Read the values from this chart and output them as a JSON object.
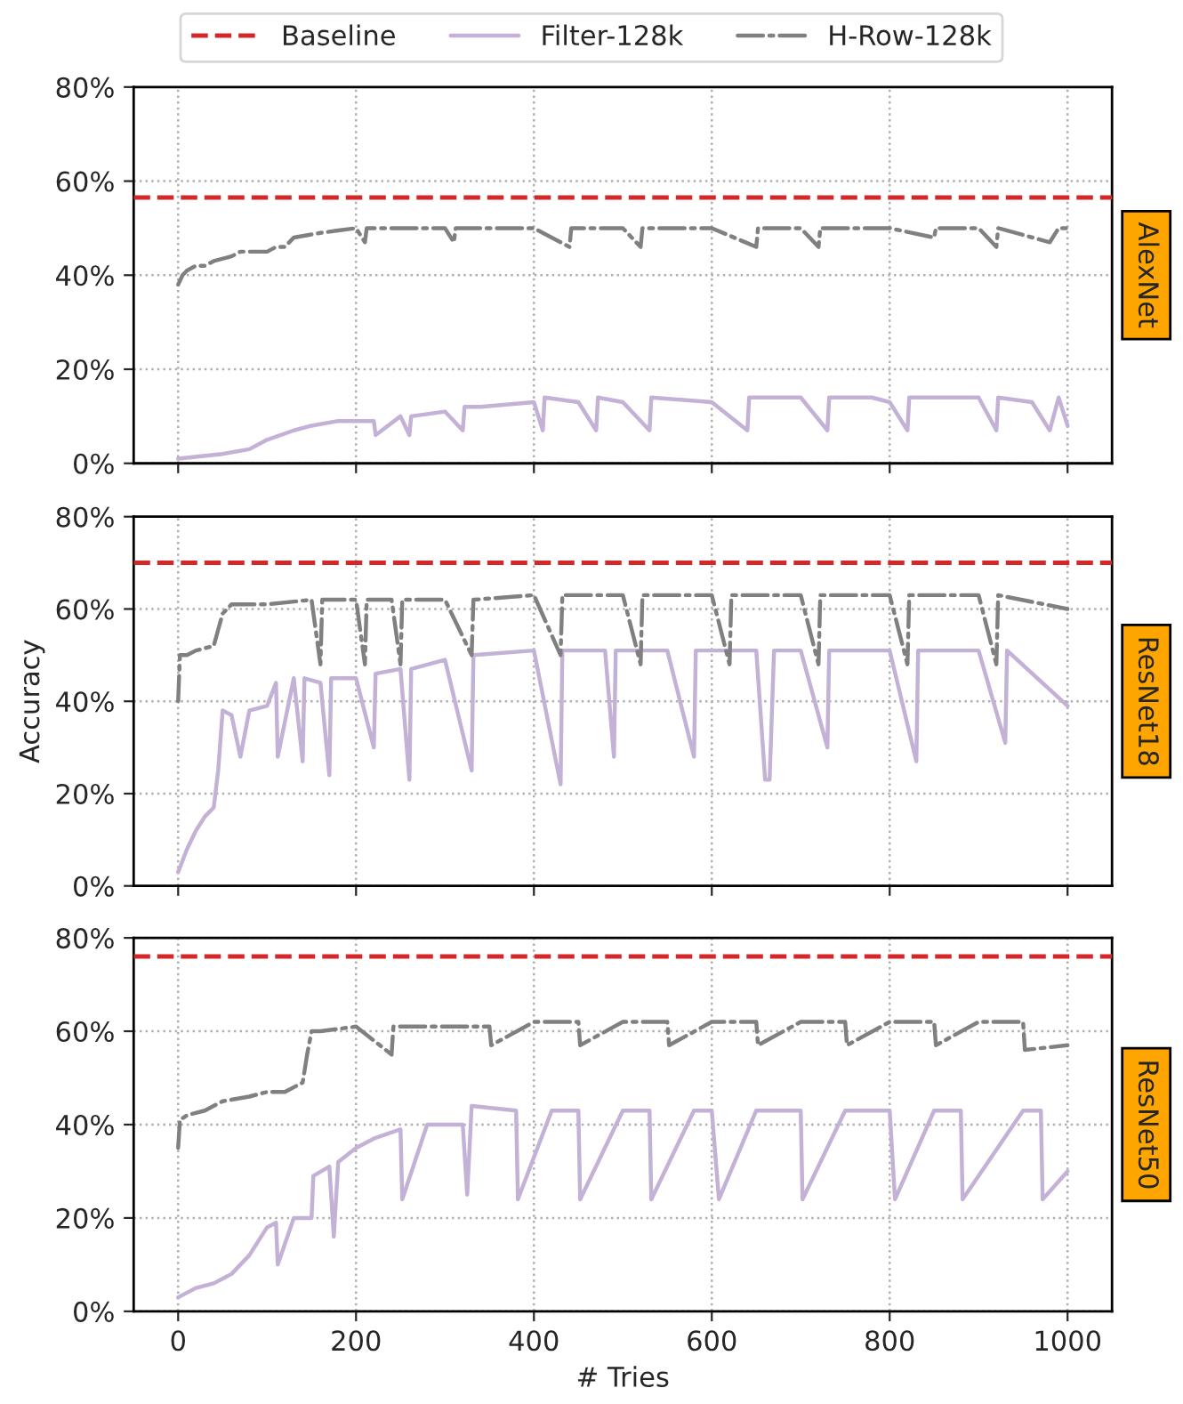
{
  "chart_data": [
    {
      "type": "line",
      "legend": "top",
      "grid": true,
      "tick_labels": "y",
      "annotations": [
        "AlexNet"
      ],
      "xlim": [
        -50,
        1050
      ],
      "xticks": [
        0,
        200,
        400,
        600,
        800,
        1000
      ],
      "ylim": [
        0,
        80
      ],
      "yticks": [
        {
          "value": 0,
          "label": "0%"
        },
        {
          "value": 20,
          "label": "20%"
        },
        {
          "value": 40,
          "label": "40%"
        },
        {
          "value": 60,
          "label": "60%"
        },
        {
          "value": 80,
          "label": "80%"
        }
      ],
      "ref_lines": [
        {
          "axis": "y",
          "value": 56.5,
          "label": "Baseline",
          "color": "#d62728",
          "line_style": "dashed"
        }
      ],
      "series": [
        {
          "name": "Filter-128k",
          "color": "#c3b1d6",
          "line_style": "solid",
          "x": [
            0,
            50,
            80,
            100,
            130,
            150,
            180,
            200,
            220,
            222,
            250,
            260,
            262,
            300,
            320,
            322,
            340,
            400,
            410,
            412,
            450,
            470,
            472,
            500,
            530,
            532,
            600,
            640,
            642,
            700,
            730,
            732,
            780,
            800,
            820,
            822,
            870,
            900,
            920,
            922,
            960,
            980,
            990,
            1000
          ],
          "values": [
            1,
            2,
            3,
            5,
            7,
            8,
            9,
            9,
            9,
            6,
            10,
            6,
            10,
            11,
            7,
            12,
            12,
            13,
            7,
            14,
            13,
            7,
            14,
            13,
            7,
            14,
            13,
            7,
            14,
            14,
            7,
            14,
            14,
            13,
            7,
            14,
            14,
            14,
            7,
            14,
            13,
            7,
            14,
            8
          ]
        },
        {
          "name": "H-Row-128k",
          "color": "#808080",
          "line_style": "dashed",
          "x": [
            0,
            5,
            10,
            20,
            30,
            40,
            60,
            70,
            100,
            110,
            120,
            130,
            160,
            180,
            200,
            210,
            212,
            230,
            300,
            310,
            312,
            400,
            440,
            442,
            500,
            520,
            522,
            600,
            650,
            652,
            700,
            720,
            722,
            800,
            850,
            852,
            900,
            920,
            922,
            980,
            990,
            1000
          ],
          "values": [
            38,
            40,
            41,
            42,
            42,
            43,
            44,
            45,
            45,
            46,
            46,
            48,
            49,
            49.5,
            50,
            47,
            50,
            50,
            50,
            47,
            50,
            50,
            46,
            50,
            50,
            46,
            50,
            50,
            46,
            50,
            50,
            46,
            50,
            50,
            48,
            50,
            50,
            46,
            50,
            47,
            50,
            50
          ]
        }
      ]
    },
    {
      "type": "line",
      "grid": true,
      "tick_labels": "y",
      "ylabel": "Accuracy",
      "annotations": [
        "ResNet18"
      ],
      "xlim": [
        -50,
        1050
      ],
      "xticks": [
        0,
        200,
        400,
        600,
        800,
        1000
      ],
      "ylim": [
        0,
        80
      ],
      "yticks": [
        {
          "value": 0,
          "label": "0%"
        },
        {
          "value": 20,
          "label": "20%"
        },
        {
          "value": 40,
          "label": "40%"
        },
        {
          "value": 60,
          "label": "60%"
        },
        {
          "value": 80,
          "label": "80%"
        }
      ],
      "ref_lines": [
        {
          "axis": "y",
          "value": 70,
          "color": "#d62728",
          "line_style": "dashed"
        }
      ],
      "series": [
        {
          "color": "#c3b1d6",
          "line_style": "solid",
          "x": [
            0,
            10,
            20,
            30,
            40,
            45,
            50,
            60,
            70,
            80,
            100,
            110,
            112,
            130,
            140,
            142,
            160,
            170,
            172,
            200,
            220,
            222,
            250,
            260,
            262,
            300,
            330,
            332,
            400,
            430,
            432,
            480,
            490,
            492,
            550,
            580,
            582,
            650,
            660,
            665,
            670,
            700,
            730,
            732,
            800,
            830,
            832,
            900,
            930,
            932,
            1000
          ],
          "values": [
            3,
            8,
            12,
            15,
            17,
            25,
            38,
            37,
            28,
            38,
            39,
            44,
            28,
            45,
            27,
            45,
            44,
            24,
            45,
            45,
            30,
            46,
            47,
            23,
            47,
            49,
            25,
            50,
            51,
            22,
            51,
            51,
            28,
            51,
            51,
            28,
            51,
            51,
            23,
            23,
            51,
            51,
            30,
            51,
            51,
            27,
            51,
            51,
            31,
            51,
            39
          ]
        },
        {
          "color": "#808080",
          "line_style": "dashed",
          "x": [
            0,
            2,
            10,
            20,
            40,
            50,
            60,
            100,
            150,
            160,
            162,
            200,
            210,
            212,
            240,
            250,
            252,
            300,
            330,
            332,
            400,
            430,
            432,
            500,
            520,
            522,
            600,
            620,
            622,
            700,
            720,
            722,
            800,
            820,
            822,
            900,
            920,
            922,
            1000
          ],
          "values": [
            40,
            50,
            50,
            51,
            52,
            59,
            61,
            61,
            62,
            48,
            62,
            62,
            48,
            62,
            62,
            48,
            62,
            62,
            50,
            62,
            63,
            50,
            63,
            63,
            48,
            63,
            63,
            48,
            63,
            63,
            48,
            63,
            63,
            48,
            63,
            63,
            48,
            63,
            60
          ]
        }
      ]
    },
    {
      "type": "line",
      "grid": true,
      "xlabel": "# Tries",
      "annotations": [
        "ResNet50"
      ],
      "xlim": [
        -50,
        1050
      ],
      "xticks": [
        0,
        200,
        400,
        600,
        800,
        1000
      ],
      "ylim": [
        0,
        80
      ],
      "yticks": [
        {
          "value": 0,
          "label": "0%"
        },
        {
          "value": 20,
          "label": "20%"
        },
        {
          "value": 40,
          "label": "40%"
        },
        {
          "value": 60,
          "label": "60%"
        },
        {
          "value": 80,
          "label": "80%"
        }
      ],
      "ref_lines": [
        {
          "axis": "y",
          "value": 76,
          "color": "#d62728",
          "line_style": "dashed"
        }
      ],
      "series": [
        {
          "color": "#c3b1d6",
          "line_style": "solid",
          "x": [
            0,
            20,
            40,
            60,
            80,
            90,
            100,
            110,
            112,
            130,
            150,
            152,
            170,
            175,
            180,
            200,
            220,
            250,
            252,
            280,
            300,
            320,
            325,
            330,
            380,
            382,
            420,
            450,
            452,
            500,
            530,
            532,
            580,
            600,
            608,
            650,
            700,
            702,
            750,
            800,
            806,
            850,
            880,
            882,
            950,
            970,
            972,
            1000
          ],
          "values": [
            3,
            5,
            6,
            8,
            12,
            15,
            18,
            19,
            10,
            20,
            20,
            29,
            31,
            16,
            32,
            35,
            37,
            39,
            24,
            40,
            40,
            40,
            25,
            44,
            43,
            24,
            43,
            43,
            24,
            43,
            43,
            24,
            43,
            43,
            24,
            43,
            43,
            24,
            43,
            43,
            24,
            43,
            43,
            24,
            43,
            43,
            24,
            30
          ]
        },
        {
          "color": "#808080",
          "line_style": "dashed",
          "x": [
            0,
            2,
            10,
            30,
            50,
            80,
            100,
            120,
            140,
            145,
            150,
            160,
            200,
            240,
            242,
            250,
            300,
            350,
            352,
            400,
            450,
            452,
            500,
            550,
            552,
            600,
            650,
            652,
            700,
            750,
            752,
            800,
            850,
            852,
            900,
            950,
            952,
            1000
          ],
          "values": [
            35,
            41,
            42,
            43,
            45,
            46,
            47,
            47,
            49,
            55,
            60,
            60,
            61,
            55,
            61,
            61,
            61,
            61,
            57,
            62,
            62,
            57,
            62,
            62,
            57,
            62,
            62,
            57,
            62,
            62,
            57,
            62,
            62,
            57,
            62,
            62,
            56,
            57
          ]
        }
      ]
    }
  ]
}
